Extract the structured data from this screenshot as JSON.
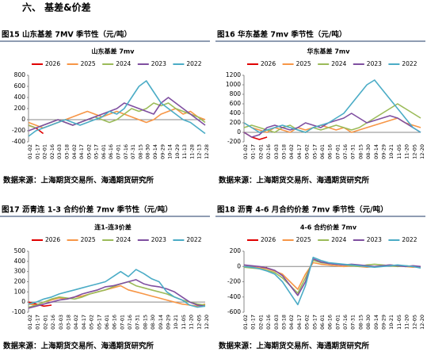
{
  "section": "六、  基差&价差",
  "chart_data": [
    {
      "type": "line",
      "caption": "图15  山东基差 7MV 季节性（元/吨）",
      "title": "山东基差 7mv",
      "source": "数据来源：上海期货交易所、海通期货研究所",
      "categories": [
        "01-02",
        "01-17",
        "02-01",
        "02-16",
        "03-03",
        "03-18",
        "04-02",
        "04-17",
        "05-02",
        "05-17",
        "06-01",
        "06-16",
        "07-01",
        "07-16",
        "07-31",
        "08-15",
        "08-30",
        "09-14",
        "09-29",
        "10-14",
        "10-29",
        "11-13",
        "11-28",
        "12-13",
        "12-28"
      ],
      "ylim": [
        -400,
        800
      ],
      "yticks": [
        -400,
        -200,
        0,
        200,
        400,
        600,
        800
      ],
      "grid": false,
      "series": [
        {
          "name": "2026",
          "color": "#e00000",
          "values": [
            -100,
            -150,
            -250,
            null,
            null,
            null,
            null,
            null,
            null,
            null,
            null,
            null,
            null,
            null,
            null,
            null,
            null,
            null,
            null,
            null,
            null,
            null,
            null,
            null,
            null
          ]
        },
        {
          "name": "2025",
          "color": "#f79646",
          "values": [
            -50,
            -100,
            -150,
            -100,
            -50,
            0,
            50,
            100,
            150,
            100,
            50,
            100,
            150,
            100,
            50,
            0,
            -50,
            0,
            100,
            150,
            200,
            100,
            150,
            50,
            0
          ]
        },
        {
          "name": "2024",
          "color": "#9bbb59",
          "values": [
            -100,
            -150,
            -100,
            -50,
            0,
            -50,
            -100,
            -50,
            0,
            50,
            0,
            -50,
            0,
            100,
            200,
            150,
            200,
            300,
            250,
            300,
            200,
            150,
            100,
            50,
            -50
          ]
        },
        {
          "name": "2023",
          "color": "#7f4fa0",
          "values": [
            -200,
            -150,
            -100,
            -50,
            0,
            -50,
            -100,
            -50,
            0,
            50,
            100,
            150,
            200,
            300,
            250,
            200,
            150,
            100,
            300,
            400,
            300,
            200,
            100,
            0,
            -100
          ]
        },
        {
          "name": "2022",
          "color": "#4bacc6",
          "values": [
            -300,
            -200,
            -150,
            -100,
            -50,
            0,
            -50,
            -100,
            -50,
            0,
            50,
            150,
            100,
            200,
            400,
            600,
            700,
            500,
            300,
            200,
            100,
            0,
            -50,
            -150,
            -250
          ]
        }
      ]
    },
    {
      "type": "line",
      "caption": "图16  华东基差 7mv 季节性（元/吨）",
      "title": "华东基差 7mv",
      "source": "数据来源：上海期货交易所、海通期货研究所",
      "categories": [
        "01-02",
        "01-17",
        "02-01",
        "02-16",
        "03-03",
        "03-18",
        "04-02",
        "04-17",
        "05-02",
        "05-17",
        "06-01",
        "06-16",
        "07-01",
        "07-16",
        "07-31",
        "08-15",
        "08-30",
        "09-14",
        "09-29",
        "10-21",
        "11-05",
        "11-20",
        "12-05",
        "12-20"
      ],
      "ylim": [
        -200,
        1200
      ],
      "yticks": [
        -200,
        0,
        200,
        400,
        600,
        800,
        1000,
        1200
      ],
      "grid": false,
      "series": [
        {
          "name": "2026",
          "color": "#e00000",
          "values": [
            0,
            -100,
            -150,
            -100,
            null,
            null,
            null,
            null,
            null,
            null,
            null,
            null,
            null,
            null,
            null,
            null,
            null,
            null,
            null,
            null,
            null,
            null,
            null,
            null
          ]
        },
        {
          "name": "2025",
          "color": "#f79646",
          "values": [
            200,
            100,
            50,
            0,
            100,
            50,
            0,
            100,
            50,
            100,
            150,
            100,
            50,
            100,
            0,
            50,
            100,
            150,
            200,
            250,
            300,
            200,
            150,
            100
          ]
        },
        {
          "name": "2024",
          "color": "#9bbb59",
          "values": [
            100,
            150,
            100,
            50,
            0,
            100,
            150,
            50,
            0,
            100,
            50,
            100,
            150,
            100,
            50,
            100,
            200,
            300,
            400,
            500,
            600,
            500,
            400,
            300
          ]
        },
        {
          "name": "2023",
          "color": "#7f4fa0",
          "values": [
            0,
            -100,
            -50,
            100,
            150,
            100,
            50,
            100,
            200,
            150,
            100,
            200,
            250,
            300,
            400,
            300,
            200,
            250,
            300,
            350,
            300,
            200,
            100,
            0
          ]
        },
        {
          "name": "2022",
          "color": "#4bacc6",
          "values": [
            200,
            100,
            0,
            50,
            100,
            150,
            100,
            50,
            0,
            100,
            150,
            200,
            300,
            400,
            600,
            800,
            1000,
            1100,
            900,
            700,
            500,
            300,
            100,
            0
          ]
        }
      ]
    },
    {
      "type": "line",
      "caption": "图17  沥青连 1-3 合约价差 7mv 季节性（元/吨）",
      "title": "连1-连3价差",
      "source": "数据来源：上海期货交易所、海通期货研究所",
      "categories": [
        "01-02",
        "01-17",
        "02-01",
        "02-16",
        "03-03",
        "03-18",
        "04-02",
        "04-17",
        "05-02",
        "05-17",
        "06-01",
        "06-16",
        "07-01",
        "07-16",
        "07-31",
        "08-15",
        "08-30",
        "09-14",
        "09-29",
        "10-21",
        "11-05",
        "11-20",
        "12-05",
        "12-20"
      ],
      "ylim": [
        -100,
        500
      ],
      "yticks": [
        -100,
        0,
        100,
        200,
        300,
        400,
        500
      ],
      "grid": false,
      "series": [
        {
          "name": "2026",
          "color": "#e00000",
          "values": [
            0,
            -20,
            -40,
            -30,
            null,
            null,
            null,
            null,
            null,
            null,
            null,
            null,
            null,
            null,
            null,
            null,
            null,
            null,
            null,
            null,
            null,
            null,
            null,
            null
          ]
        },
        {
          "name": "2025",
          "color": "#f79646",
          "values": [
            -20,
            -30,
            0,
            20,
            40,
            30,
            50,
            60,
            80,
            100,
            120,
            140,
            160,
            120,
            100,
            80,
            60,
            40,
            20,
            0,
            -20,
            -30,
            -40,
            -20
          ]
        },
        {
          "name": "2024",
          "color": "#9bbb59",
          "values": [
            -50,
            -30,
            0,
            30,
            50,
            40,
            30,
            50,
            80,
            100,
            120,
            150,
            180,
            200,
            160,
            140,
            120,
            100,
            80,
            50,
            20,
            0,
            -20,
            -30
          ]
        },
        {
          "name": "2023",
          "color": "#7f4fa0",
          "values": [
            -60,
            -40,
            -20,
            0,
            20,
            30,
            50,
            80,
            100,
            120,
            150,
            160,
            180,
            200,
            220,
            180,
            160,
            150,
            130,
            100,
            50,
            0,
            -30,
            -40
          ]
        },
        {
          "name": "2022",
          "color": "#4bacc6",
          "values": [
            -20,
            0,
            30,
            50,
            80,
            100,
            120,
            140,
            160,
            180,
            200,
            250,
            300,
            250,
            320,
            280,
            230,
            200,
            100,
            50,
            20,
            -30,
            -50,
            -40
          ]
        }
      ]
    },
    {
      "type": "line",
      "caption": "图18  沥青 4-6 月合约价差 7mv 季节性（元/吨）",
      "title": "4-6 合约价差 7mv",
      "source": "数据来源：上海期货交易所、海通期货研究所",
      "categories": [
        "01-02",
        "01-17",
        "02-01",
        "02-16",
        "03-03",
        "03-18",
        "04-02",
        "04-17",
        "05-02",
        "05-17",
        "06-01",
        "06-16",
        "07-01",
        "07-16",
        "07-31",
        "08-15",
        "08-30",
        "09-14",
        "09-29",
        "10-21",
        "11-05",
        "11-20",
        "12-05",
        "12-20"
      ],
      "ylim": [
        -600,
        200
      ],
      "yticks": [
        -600,
        -400,
        -200,
        0,
        200
      ],
      "grid": false,
      "series": [
        {
          "name": "2026",
          "color": "#e00000",
          "values": [
            0,
            -10,
            -20,
            -15,
            null,
            null,
            null,
            null,
            null,
            null,
            null,
            null,
            null,
            null,
            null,
            null,
            null,
            null,
            null,
            null,
            null,
            null,
            null,
            null
          ]
        },
        {
          "name": "2025",
          "color": "#f79646",
          "values": [
            0,
            -10,
            -20,
            -30,
            -60,
            -100,
            -200,
            -300,
            -100,
            50,
            30,
            20,
            10,
            0,
            10,
            0,
            -10,
            0,
            10,
            20,
            10,
            0,
            -10,
            0
          ]
        },
        {
          "name": "2024",
          "color": "#9bbb59",
          "values": [
            -10,
            -20,
            -30,
            -50,
            -80,
            -150,
            -250,
            -350,
            -150,
            80,
            50,
            40,
            30,
            20,
            10,
            0,
            20,
            30,
            20,
            10,
            0,
            10,
            0,
            -10
          ]
        },
        {
          "name": "2023",
          "color": "#7f4fa0",
          "values": [
            20,
            10,
            0,
            -20,
            -50,
            -120,
            -250,
            -380,
            -200,
            100,
            60,
            40,
            30,
            20,
            30,
            20,
            10,
            0,
            10,
            20,
            10,
            0,
            10,
            0
          ]
        },
        {
          "name": "2022",
          "color": "#4bacc6",
          "values": [
            0,
            -10,
            -30,
            -60,
            -100,
            -200,
            -350,
            -500,
            -250,
            120,
            80,
            50,
            40,
            30,
            20,
            10,
            0,
            -10,
            0,
            10,
            20,
            10,
            0,
            -20
          ]
        }
      ]
    }
  ]
}
